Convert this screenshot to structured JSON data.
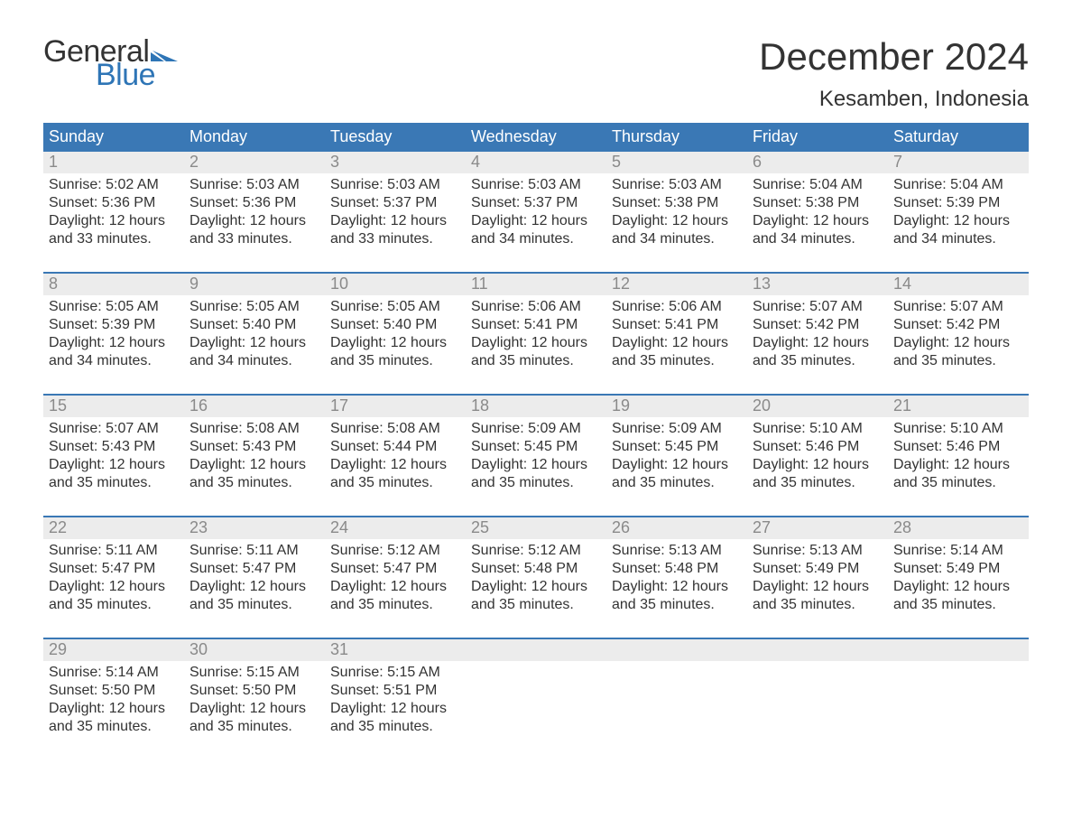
{
  "brand": {
    "text_general": "General",
    "text_blue": "Blue",
    "flag_color": "#2e75b6"
  },
  "header": {
    "month_title": "December 2024",
    "location": "Kesamben, Indonesia"
  },
  "style": {
    "header_bg": "#3a78b5",
    "header_text_color": "#ffffff",
    "daynum_bg": "#ececec",
    "daynum_color": "#8a8a8a",
    "body_text_color": "#333333",
    "week_border_color": "#3a78b5",
    "page_bg": "#ffffff",
    "font_family": "Arial, Helvetica, sans-serif",
    "month_title_fontsize": 42,
    "location_fontsize": 24,
    "dow_fontsize": 18,
    "daynum_fontsize": 18,
    "detail_fontsize": 16
  },
  "days_of_week": [
    "Sunday",
    "Monday",
    "Tuesday",
    "Wednesday",
    "Thursday",
    "Friday",
    "Saturday"
  ],
  "weeks": [
    [
      {
        "n": "1",
        "sunrise": "Sunrise: 5:02 AM",
        "sunset": "Sunset: 5:36 PM",
        "d1": "Daylight: 12 hours",
        "d2": "and 33 minutes."
      },
      {
        "n": "2",
        "sunrise": "Sunrise: 5:03 AM",
        "sunset": "Sunset: 5:36 PM",
        "d1": "Daylight: 12 hours",
        "d2": "and 33 minutes."
      },
      {
        "n": "3",
        "sunrise": "Sunrise: 5:03 AM",
        "sunset": "Sunset: 5:37 PM",
        "d1": "Daylight: 12 hours",
        "d2": "and 33 minutes."
      },
      {
        "n": "4",
        "sunrise": "Sunrise: 5:03 AM",
        "sunset": "Sunset: 5:37 PM",
        "d1": "Daylight: 12 hours",
        "d2": "and 34 minutes."
      },
      {
        "n": "5",
        "sunrise": "Sunrise: 5:03 AM",
        "sunset": "Sunset: 5:38 PM",
        "d1": "Daylight: 12 hours",
        "d2": "and 34 minutes."
      },
      {
        "n": "6",
        "sunrise": "Sunrise: 5:04 AM",
        "sunset": "Sunset: 5:38 PM",
        "d1": "Daylight: 12 hours",
        "d2": "and 34 minutes."
      },
      {
        "n": "7",
        "sunrise": "Sunrise: 5:04 AM",
        "sunset": "Sunset: 5:39 PM",
        "d1": "Daylight: 12 hours",
        "d2": "and 34 minutes."
      }
    ],
    [
      {
        "n": "8",
        "sunrise": "Sunrise: 5:05 AM",
        "sunset": "Sunset: 5:39 PM",
        "d1": "Daylight: 12 hours",
        "d2": "and 34 minutes."
      },
      {
        "n": "9",
        "sunrise": "Sunrise: 5:05 AM",
        "sunset": "Sunset: 5:40 PM",
        "d1": "Daylight: 12 hours",
        "d2": "and 34 minutes."
      },
      {
        "n": "10",
        "sunrise": "Sunrise: 5:05 AM",
        "sunset": "Sunset: 5:40 PM",
        "d1": "Daylight: 12 hours",
        "d2": "and 35 minutes."
      },
      {
        "n": "11",
        "sunrise": "Sunrise: 5:06 AM",
        "sunset": "Sunset: 5:41 PM",
        "d1": "Daylight: 12 hours",
        "d2": "and 35 minutes."
      },
      {
        "n": "12",
        "sunrise": "Sunrise: 5:06 AM",
        "sunset": "Sunset: 5:41 PM",
        "d1": "Daylight: 12 hours",
        "d2": "and 35 minutes."
      },
      {
        "n": "13",
        "sunrise": "Sunrise: 5:07 AM",
        "sunset": "Sunset: 5:42 PM",
        "d1": "Daylight: 12 hours",
        "d2": "and 35 minutes."
      },
      {
        "n": "14",
        "sunrise": "Sunrise: 5:07 AM",
        "sunset": "Sunset: 5:42 PM",
        "d1": "Daylight: 12 hours",
        "d2": "and 35 minutes."
      }
    ],
    [
      {
        "n": "15",
        "sunrise": "Sunrise: 5:07 AM",
        "sunset": "Sunset: 5:43 PM",
        "d1": "Daylight: 12 hours",
        "d2": "and 35 minutes."
      },
      {
        "n": "16",
        "sunrise": "Sunrise: 5:08 AM",
        "sunset": "Sunset: 5:43 PM",
        "d1": "Daylight: 12 hours",
        "d2": "and 35 minutes."
      },
      {
        "n": "17",
        "sunrise": "Sunrise: 5:08 AM",
        "sunset": "Sunset: 5:44 PM",
        "d1": "Daylight: 12 hours",
        "d2": "and 35 minutes."
      },
      {
        "n": "18",
        "sunrise": "Sunrise: 5:09 AM",
        "sunset": "Sunset: 5:45 PM",
        "d1": "Daylight: 12 hours",
        "d2": "and 35 minutes."
      },
      {
        "n": "19",
        "sunrise": "Sunrise: 5:09 AM",
        "sunset": "Sunset: 5:45 PM",
        "d1": "Daylight: 12 hours",
        "d2": "and 35 minutes."
      },
      {
        "n": "20",
        "sunrise": "Sunrise: 5:10 AM",
        "sunset": "Sunset: 5:46 PM",
        "d1": "Daylight: 12 hours",
        "d2": "and 35 minutes."
      },
      {
        "n": "21",
        "sunrise": "Sunrise: 5:10 AM",
        "sunset": "Sunset: 5:46 PM",
        "d1": "Daylight: 12 hours",
        "d2": "and 35 minutes."
      }
    ],
    [
      {
        "n": "22",
        "sunrise": "Sunrise: 5:11 AM",
        "sunset": "Sunset: 5:47 PM",
        "d1": "Daylight: 12 hours",
        "d2": "and 35 minutes."
      },
      {
        "n": "23",
        "sunrise": "Sunrise: 5:11 AM",
        "sunset": "Sunset: 5:47 PM",
        "d1": "Daylight: 12 hours",
        "d2": "and 35 minutes."
      },
      {
        "n": "24",
        "sunrise": "Sunrise: 5:12 AM",
        "sunset": "Sunset: 5:47 PM",
        "d1": "Daylight: 12 hours",
        "d2": "and 35 minutes."
      },
      {
        "n": "25",
        "sunrise": "Sunrise: 5:12 AM",
        "sunset": "Sunset: 5:48 PM",
        "d1": "Daylight: 12 hours",
        "d2": "and 35 minutes."
      },
      {
        "n": "26",
        "sunrise": "Sunrise: 5:13 AM",
        "sunset": "Sunset: 5:48 PM",
        "d1": "Daylight: 12 hours",
        "d2": "and 35 minutes."
      },
      {
        "n": "27",
        "sunrise": "Sunrise: 5:13 AM",
        "sunset": "Sunset: 5:49 PM",
        "d1": "Daylight: 12 hours",
        "d2": "and 35 minutes."
      },
      {
        "n": "28",
        "sunrise": "Sunrise: 5:14 AM",
        "sunset": "Sunset: 5:49 PM",
        "d1": "Daylight: 12 hours",
        "d2": "and 35 minutes."
      }
    ],
    [
      {
        "n": "29",
        "sunrise": "Sunrise: 5:14 AM",
        "sunset": "Sunset: 5:50 PM",
        "d1": "Daylight: 12 hours",
        "d2": "and 35 minutes."
      },
      {
        "n": "30",
        "sunrise": "Sunrise: 5:15 AM",
        "sunset": "Sunset: 5:50 PM",
        "d1": "Daylight: 12 hours",
        "d2": "and 35 minutes."
      },
      {
        "n": "31",
        "sunrise": "Sunrise: 5:15 AM",
        "sunset": "Sunset: 5:51 PM",
        "d1": "Daylight: 12 hours",
        "d2": "and 35 minutes."
      },
      null,
      null,
      null,
      null
    ]
  ]
}
